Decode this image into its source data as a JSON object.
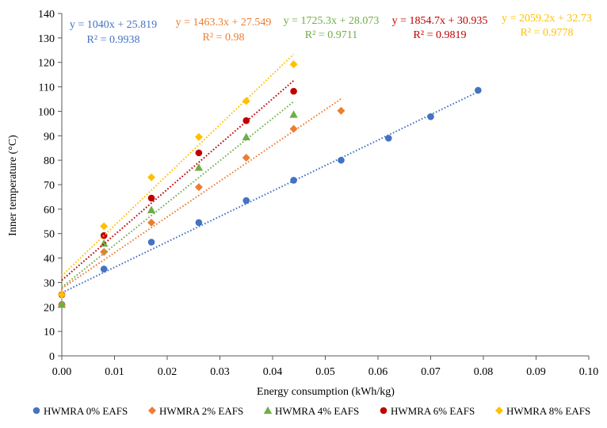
{
  "chart_data": {
    "type": "scatter",
    "title": "",
    "xlabel": "Energy consumption (kWh/kg)",
    "ylabel": "Inner temperature (°C)",
    "xlim": [
      0,
      0.1
    ],
    "ylim": [
      0,
      140
    ],
    "x_ticks": [
      "0.00",
      "0.01",
      "0.02",
      "0.03",
      "0.04",
      "0.05",
      "0.06",
      "0.07",
      "0.08",
      "0.09",
      "0.10"
    ],
    "y_ticks": [
      "0",
      "10",
      "20",
      "30",
      "40",
      "50",
      "60",
      "70",
      "80",
      "90",
      "100",
      "110",
      "120",
      "130",
      "140"
    ],
    "grid": false,
    "legend_position": "bottom",
    "series": [
      {
        "name": "HWMRA 0% EAFS",
        "color": "#4472C4",
        "marker": "circle",
        "equation": "y = 1040x + 25.819",
        "r2": "R² = 0.9938",
        "slope": 1040,
        "intercept": 25.819,
        "fit_range": [
          0,
          0.079
        ],
        "points": [
          [
            0,
            21
          ],
          [
            0.008,
            35.5
          ],
          [
            0.017,
            46.5
          ],
          [
            0.026,
            54.5
          ],
          [
            0.035,
            63.5
          ],
          [
            0.044,
            71.8
          ],
          [
            0.053,
            80
          ],
          [
            0.062,
            89
          ],
          [
            0.07,
            97.8
          ],
          [
            0.079,
            108.6
          ]
        ]
      },
      {
        "name": "HWMRA 2% EAFS",
        "color": "#ED7D31",
        "marker": "diamond",
        "equation": "y = 1463.3x + 27.549",
        "r2": "R² = 0.98",
        "slope": 1463.3,
        "intercept": 27.549,
        "fit_range": [
          0,
          0.053
        ],
        "points": [
          [
            0,
            21
          ],
          [
            0.008,
            42.5
          ],
          [
            0.017,
            54.5
          ],
          [
            0.026,
            69
          ],
          [
            0.035,
            81
          ],
          [
            0.044,
            92.8
          ],
          [
            0.053,
            100.2
          ]
        ]
      },
      {
        "name": "HWMRA 4% EAFS",
        "color": "#70AD47",
        "marker": "triangle",
        "equation": "y = 1725.3x + 28.073",
        "r2": "R² = 0.9711",
        "slope": 1725.3,
        "intercept": 28.073,
        "fit_range": [
          0,
          0.044
        ],
        "points": [
          [
            0,
            21
          ],
          [
            0.008,
            46
          ],
          [
            0.017,
            59.7
          ],
          [
            0.026,
            77
          ],
          [
            0.035,
            89.5
          ],
          [
            0.044,
            98.7
          ]
        ]
      },
      {
        "name": "HWMRA 6% EAFS",
        "color": "#C00000",
        "marker": "circle",
        "equation": "y = 1854.7x + 30.935",
        "r2": "R² = 0.9819",
        "slope": 1854.7,
        "intercept": 30.935,
        "fit_range": [
          0,
          0.044
        ],
        "points": [
          [
            0,
            25
          ],
          [
            0.008,
            49.2
          ],
          [
            0.017,
            64.5
          ],
          [
            0.026,
            83
          ],
          [
            0.035,
            96.2
          ],
          [
            0.044,
            108.2
          ]
        ]
      },
      {
        "name": "HWMRA 8% EAFS",
        "color": "#FFC000",
        "marker": "diamond",
        "equation": "y = 2059.2x + 32.73",
        "r2": "R² = 0.9778",
        "slope": 2059.2,
        "intercept": 32.73,
        "fit_range": [
          0,
          0.044
        ],
        "points": [
          [
            0,
            25
          ],
          [
            0.008,
            53
          ],
          [
            0.017,
            73
          ],
          [
            0.026,
            89.5
          ],
          [
            0.035,
            104.2
          ],
          [
            0.044,
            119.2
          ]
        ]
      }
    ]
  }
}
